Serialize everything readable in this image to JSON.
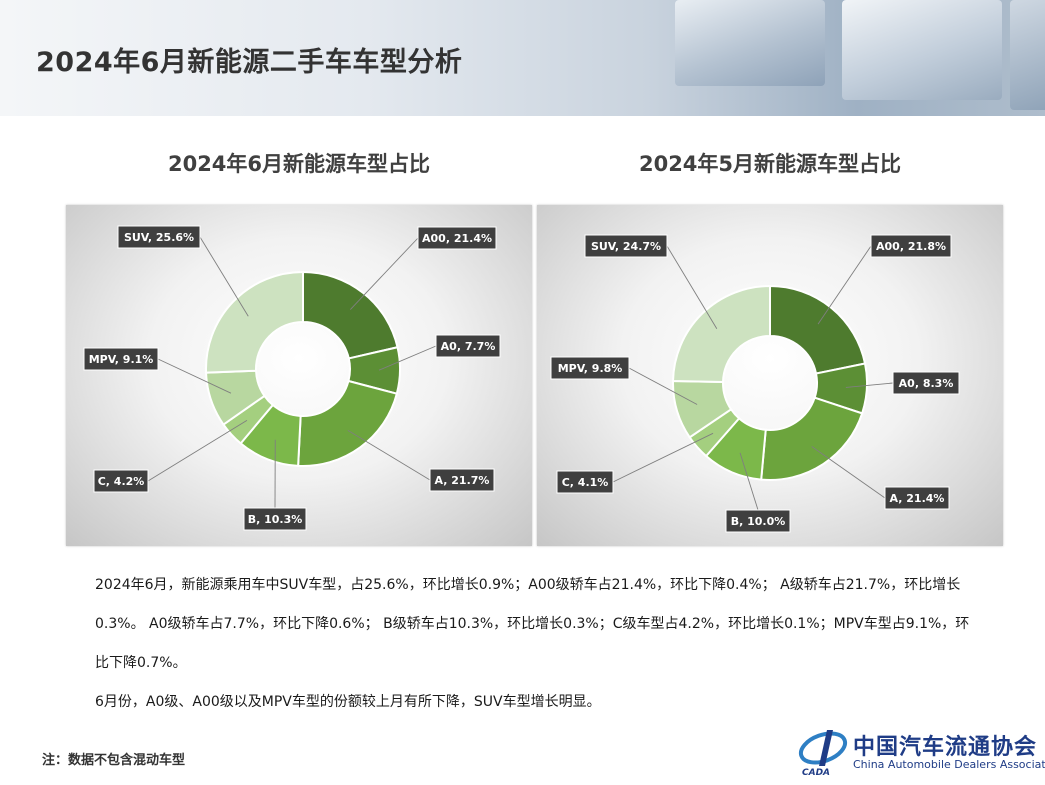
{
  "page": {
    "title": "2024年6月新能源二手车车型分析",
    "paragraphs": [
      "2024年6月，新能源乘用车中SUV车型，占25.6%，环比增长0.9%；A00级轿车占21.4%，环比下降0.4%；  A级轿车占21.7%，环比增长0.3%。 A0级轿车占7.7%，环比下降0.6%；  B级轿车占10.3%，环比增长0.3%；C级车型占4.2%，环比增长0.1%；MPV车型占9.1%，环比下降0.7%。",
      "6月份，A0级、A00级以及MPV车型的份额较上月有所下降，SUV车型增长明显。"
    ],
    "note": "注：数据不包含混动车型",
    "logo": {
      "name": "中国汽车流通协会",
      "subtitle": "China Automobile Dealers Association",
      "mark_text": "CADA"
    }
  },
  "chart_data": [
    {
      "type": "pie",
      "style": "donut",
      "title": "2024年6月新能源车型占比",
      "categories": [
        "A00",
        "A0",
        "A",
        "B",
        "C",
        "MPV",
        "SUV"
      ],
      "values": [
        21.4,
        7.7,
        21.7,
        10.3,
        4.2,
        9.1,
        25.6
      ],
      "labels": [
        "A00, 21.4%",
        "A0, 7.7%",
        "A, 21.7%",
        "B, 10.3%",
        "C, 4.2%",
        "MPV, 9.1%",
        "SUV, 25.6%"
      ],
      "colors": [
        "#4e7b2e",
        "#5c8f35",
        "#6ca43d",
        "#7cb84a",
        "#a4cf7f",
        "#b8d7a0",
        "#cde2c0"
      ],
      "legend": "none"
    },
    {
      "type": "pie",
      "style": "donut",
      "title": "2024年5月新能源车型占比",
      "categories": [
        "A00",
        "A0",
        "A",
        "B",
        "C",
        "MPV",
        "SUV"
      ],
      "values": [
        21.8,
        8.3,
        21.4,
        10.0,
        4.1,
        9.8,
        24.7
      ],
      "labels": [
        "A00, 21.8%",
        "A0, 8.3%",
        "A, 21.4%",
        "B, 10.0%",
        "C, 4.1%",
        "MPV, 9.8%",
        "SUV, 24.7%"
      ],
      "colors": [
        "#4e7b2e",
        "#5c8f35",
        "#6ca43d",
        "#7cb84a",
        "#a4cf7f",
        "#b8d7a0",
        "#cde2c0"
      ],
      "legend": "none"
    }
  ]
}
